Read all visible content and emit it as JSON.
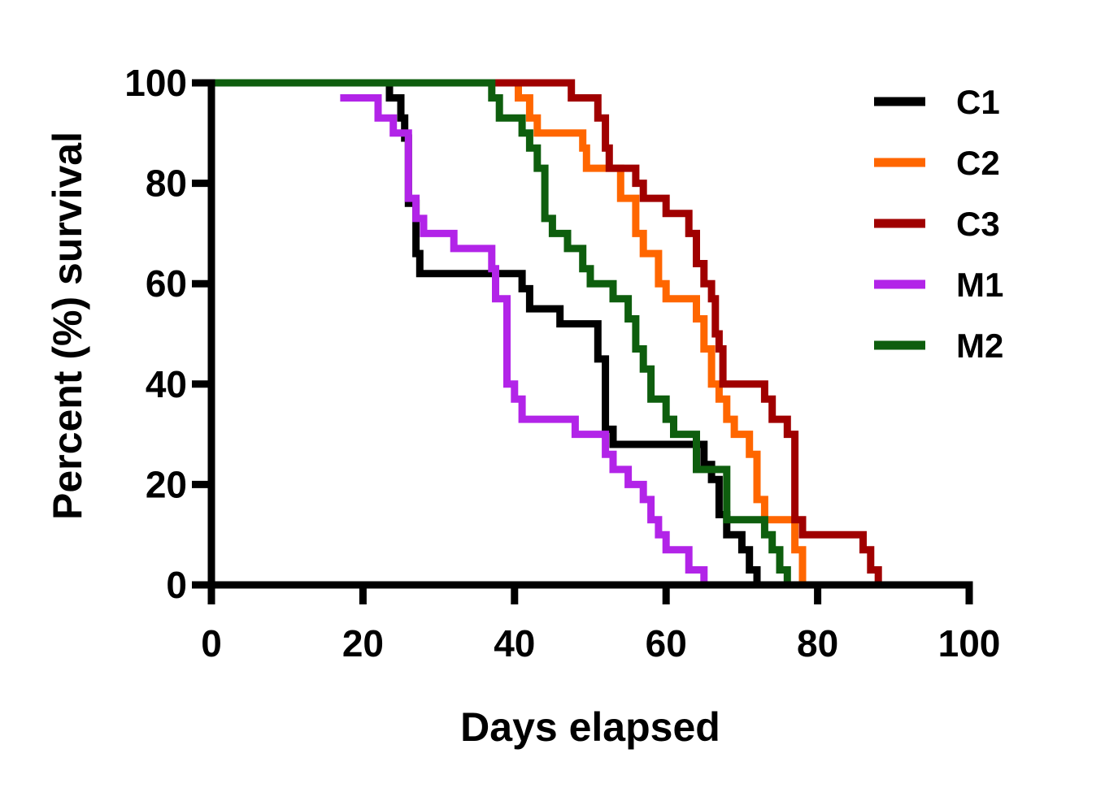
{
  "chart_data": {
    "type": "line",
    "step": true,
    "xlabel": "Days elapsed",
    "ylabel": "Percent (%) survival",
    "xlim": [
      0,
      100
    ],
    "ylim": [
      0,
      100
    ],
    "xticks": [
      0,
      20,
      40,
      60,
      80,
      100
    ],
    "yticks": [
      0,
      20,
      40,
      60,
      80,
      100
    ],
    "grid": false,
    "legend_position": "top-right",
    "series": [
      {
        "name": "C1",
        "color": "#000000",
        "points": [
          [
            0,
            100
          ],
          [
            23.5,
            100
          ],
          [
            23.5,
            97
          ],
          [
            25,
            97
          ],
          [
            25,
            93
          ],
          [
            25.5,
            93
          ],
          [
            25.5,
            89
          ],
          [
            26,
            89
          ],
          [
            26,
            76
          ],
          [
            27,
            76
          ],
          [
            27,
            66
          ],
          [
            27.5,
            66
          ],
          [
            27.5,
            62
          ],
          [
            41,
            62
          ],
          [
            41,
            59
          ],
          [
            42,
            59
          ],
          [
            42,
            55
          ],
          [
            46,
            55
          ],
          [
            46,
            52
          ],
          [
            51,
            52
          ],
          [
            51,
            45
          ],
          [
            52,
            45
          ],
          [
            52,
            31
          ],
          [
            53,
            31
          ],
          [
            53,
            28
          ],
          [
            65,
            28
          ],
          [
            65,
            24
          ],
          [
            66,
            24
          ],
          [
            66,
            21
          ],
          [
            67,
            21
          ],
          [
            67,
            14
          ],
          [
            68,
            14
          ],
          [
            68,
            10
          ],
          [
            70,
            10
          ],
          [
            70,
            7
          ],
          [
            71,
            7
          ],
          [
            71,
            3
          ],
          [
            72,
            3
          ],
          [
            72,
            0
          ],
          [
            100,
            0
          ]
        ]
      },
      {
        "name": "C2",
        "color": "#ff6600",
        "points": [
          [
            0,
            100
          ],
          [
            40.5,
            100
          ],
          [
            40.5,
            97
          ],
          [
            42,
            97
          ],
          [
            42,
            93
          ],
          [
            43,
            93
          ],
          [
            43,
            90
          ],
          [
            49,
            90
          ],
          [
            49,
            87
          ],
          [
            49.5,
            87
          ],
          [
            49.5,
            83
          ],
          [
            54,
            83
          ],
          [
            54,
            77
          ],
          [
            56,
            77
          ],
          [
            56,
            70
          ],
          [
            57,
            70
          ],
          [
            57,
            66
          ],
          [
            59,
            66
          ],
          [
            59,
            60
          ],
          [
            60,
            60
          ],
          [
            60,
            57
          ],
          [
            64,
            57
          ],
          [
            64,
            53
          ],
          [
            65,
            53
          ],
          [
            65,
            47
          ],
          [
            66,
            47
          ],
          [
            66,
            40
          ],
          [
            67,
            40
          ],
          [
            67,
            37
          ],
          [
            68,
            37
          ],
          [
            68,
            33
          ],
          [
            69,
            33
          ],
          [
            69,
            30
          ],
          [
            71,
            30
          ],
          [
            71,
            26
          ],
          [
            72,
            26
          ],
          [
            72,
            17
          ],
          [
            73,
            17
          ],
          [
            73,
            13
          ],
          [
            77,
            13
          ],
          [
            77,
            7
          ],
          [
            78,
            7
          ],
          [
            78,
            0
          ],
          [
            100,
            0
          ]
        ]
      },
      {
        "name": "C3",
        "color": "#a00000",
        "points": [
          [
            0,
            100
          ],
          [
            47.5,
            100
          ],
          [
            47.5,
            97
          ],
          [
            51,
            97
          ],
          [
            51,
            93
          ],
          [
            52,
            93
          ],
          [
            52,
            87
          ],
          [
            52.5,
            87
          ],
          [
            52.5,
            83
          ],
          [
            56,
            83
          ],
          [
            56,
            80
          ],
          [
            57,
            80
          ],
          [
            57,
            77
          ],
          [
            60,
            77
          ],
          [
            60,
            74
          ],
          [
            63,
            74
          ],
          [
            63,
            70
          ],
          [
            64,
            70
          ],
          [
            64,
            64
          ],
          [
            65,
            64
          ],
          [
            65,
            60
          ],
          [
            66,
            60
          ],
          [
            66,
            57
          ],
          [
            66.5,
            57
          ],
          [
            66.5,
            50
          ],
          [
            67,
            50
          ],
          [
            67,
            47
          ],
          [
            67.5,
            47
          ],
          [
            67.5,
            40
          ],
          [
            73,
            40
          ],
          [
            73,
            37
          ],
          [
            74,
            37
          ],
          [
            74,
            33
          ],
          [
            76,
            33
          ],
          [
            76,
            30
          ],
          [
            77,
            30
          ],
          [
            77,
            13
          ],
          [
            78,
            13
          ],
          [
            78,
            10
          ],
          [
            86,
            10
          ],
          [
            86,
            7
          ],
          [
            87,
            7
          ],
          [
            87,
            3
          ],
          [
            88,
            3
          ],
          [
            88,
            0
          ],
          [
            100,
            0
          ]
        ]
      },
      {
        "name": "M1",
        "color": "#b224e8",
        "points": [
          [
            17,
            97
          ],
          [
            22,
            97
          ],
          [
            22,
            93
          ],
          [
            24,
            93
          ],
          [
            24,
            90
          ],
          [
            26,
            90
          ],
          [
            26,
            77
          ],
          [
            27,
            77
          ],
          [
            27,
            73
          ],
          [
            28,
            73
          ],
          [
            28,
            70
          ],
          [
            32,
            70
          ],
          [
            32,
            67
          ],
          [
            37,
            67
          ],
          [
            37,
            63
          ],
          [
            37.5,
            63
          ],
          [
            37.5,
            57
          ],
          [
            39,
            57
          ],
          [
            39,
            40
          ],
          [
            40,
            40
          ],
          [
            40,
            37
          ],
          [
            41,
            37
          ],
          [
            41,
            33
          ],
          [
            48,
            33
          ],
          [
            48,
            30
          ],
          [
            52,
            30
          ],
          [
            52,
            26
          ],
          [
            53,
            26
          ],
          [
            53,
            23
          ],
          [
            55,
            23
          ],
          [
            55,
            20
          ],
          [
            57,
            20
          ],
          [
            57,
            17
          ],
          [
            58,
            17
          ],
          [
            58,
            13
          ],
          [
            59,
            13
          ],
          [
            59,
            10
          ],
          [
            60,
            10
          ],
          [
            60,
            7
          ],
          [
            63,
            7
          ],
          [
            63,
            3
          ],
          [
            65,
            3
          ],
          [
            65,
            0
          ],
          [
            66,
            0
          ]
        ]
      },
      {
        "name": "M2",
        "color": "#0e5e0e",
        "points": [
          [
            0,
            100
          ],
          [
            37,
            100
          ],
          [
            37,
            97
          ],
          [
            38,
            97
          ],
          [
            38,
            93
          ],
          [
            41,
            93
          ],
          [
            41,
            90
          ],
          [
            42,
            90
          ],
          [
            42,
            87
          ],
          [
            43,
            87
          ],
          [
            43,
            83
          ],
          [
            44,
            83
          ],
          [
            44,
            73
          ],
          [
            45,
            73
          ],
          [
            45,
            70
          ],
          [
            47,
            70
          ],
          [
            47,
            67
          ],
          [
            49,
            67
          ],
          [
            49,
            63
          ],
          [
            50,
            63
          ],
          [
            50,
            60
          ],
          [
            53,
            60
          ],
          [
            53,
            57
          ],
          [
            55,
            57
          ],
          [
            55,
            53
          ],
          [
            56,
            53
          ],
          [
            56,
            47
          ],
          [
            57,
            47
          ],
          [
            57,
            43
          ],
          [
            58,
            43
          ],
          [
            58,
            37
          ],
          [
            60,
            37
          ],
          [
            60,
            33
          ],
          [
            61,
            33
          ],
          [
            61,
            30
          ],
          [
            64,
            30
          ],
          [
            64,
            23
          ],
          [
            68,
            23
          ],
          [
            68,
            13
          ],
          [
            73,
            13
          ],
          [
            73,
            10
          ],
          [
            74,
            10
          ],
          [
            74,
            7
          ],
          [
            75,
            7
          ],
          [
            75,
            3
          ],
          [
            76,
            3
          ],
          [
            76,
            0
          ],
          [
            77,
            0
          ]
        ]
      }
    ]
  }
}
